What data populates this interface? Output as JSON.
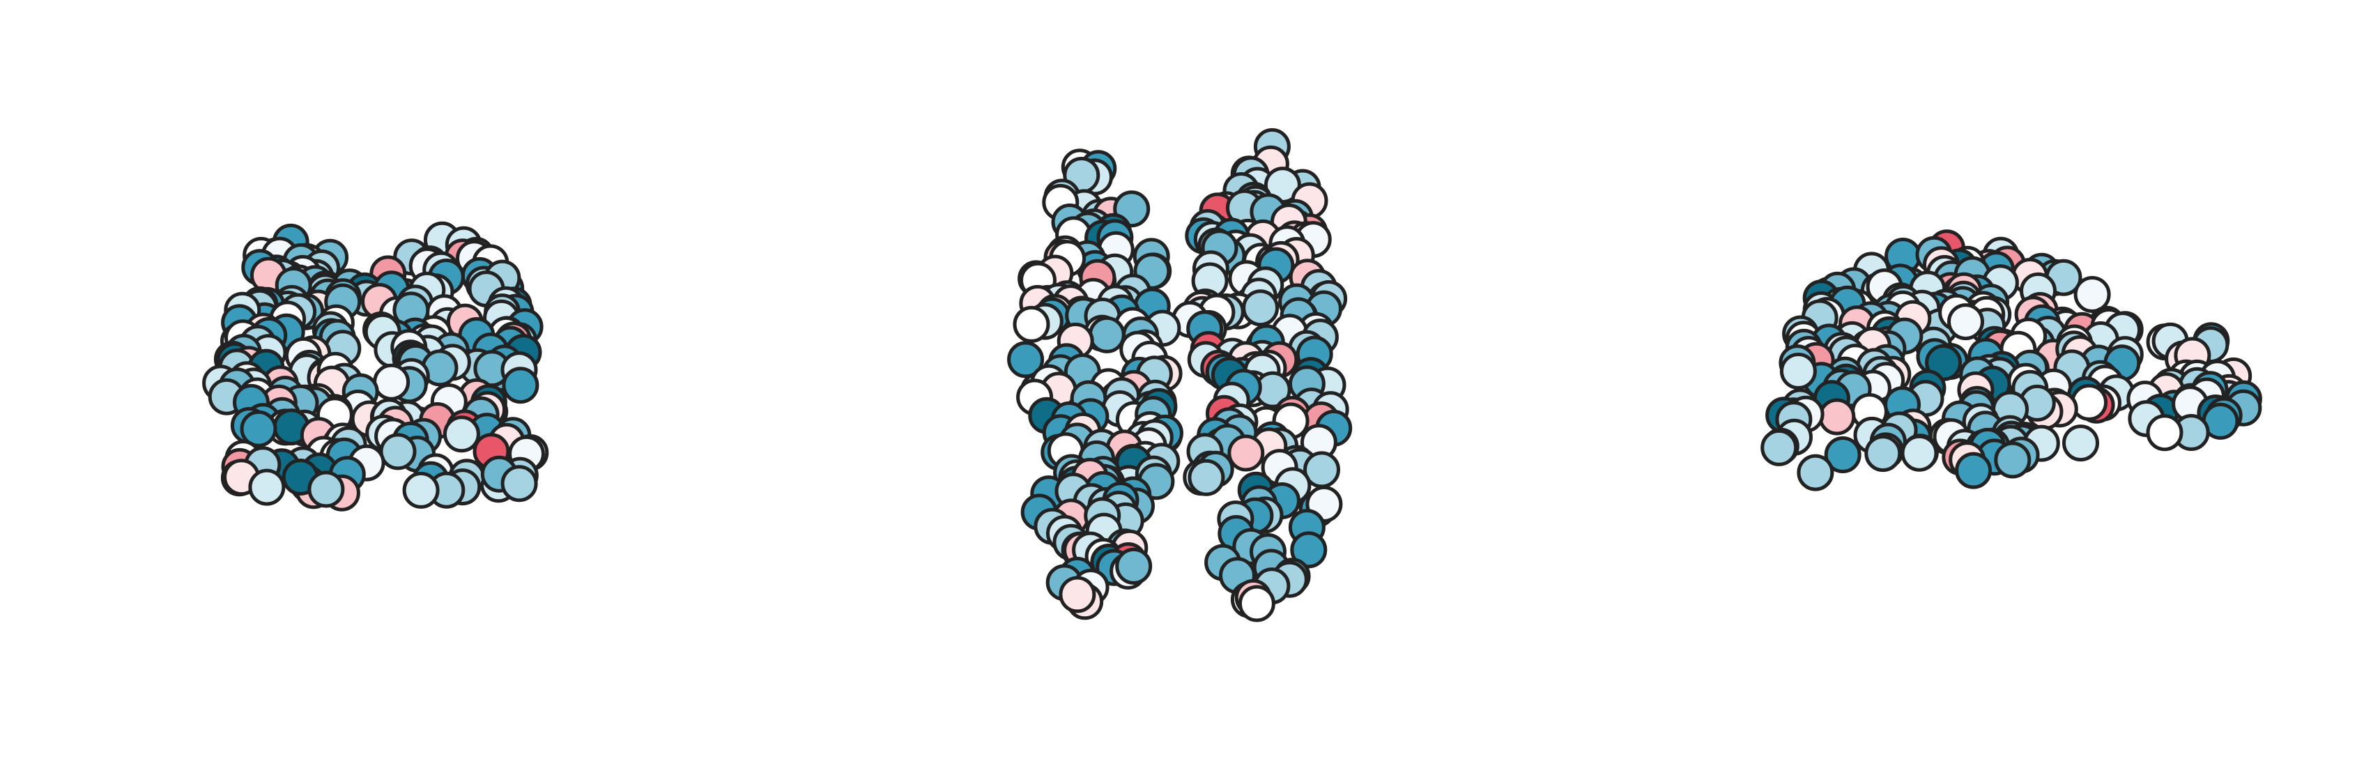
{
  "figure": {
    "description_visible_text": "",
    "views": [
      {
        "id": "coronal",
        "label": ""
      },
      {
        "id": "axial",
        "label": ""
      },
      {
        "id": "sagittal",
        "label": ""
      }
    ]
  },
  "palette": {
    "stroke": "#222222",
    "background": "#ffffff",
    "scale": [
      "#0f6d87",
      "#3a9bbb",
      "#6fb8d0",
      "#a6d3e2",
      "#d2eaf2",
      "#f2f8fb",
      "#ffffff",
      "#fde6e8",
      "#f9c4ca",
      "#f298a3",
      "#e8566a",
      "#c92048"
    ]
  }
}
